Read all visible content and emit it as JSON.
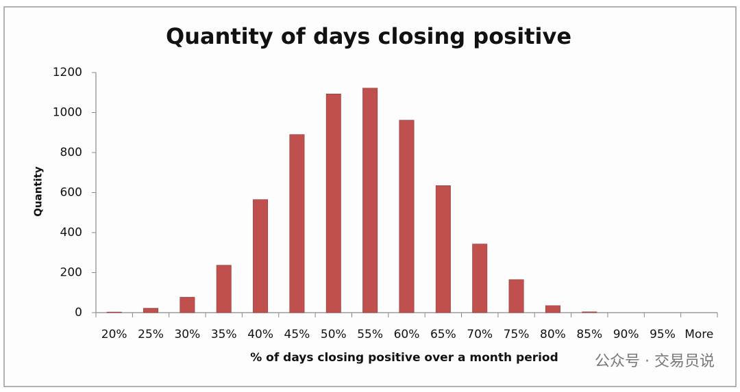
{
  "chart_data": {
    "type": "bar",
    "title": "Quantity of days closing positive",
    "x_label": "% of days closing positive over a month period",
    "y_label": "Quantity",
    "categories": [
      "20%",
      "25%",
      "30%",
      "35%",
      "40%",
      "45%",
      "50%",
      "55%",
      "60%",
      "65%",
      "70%",
      "75%",
      "80%",
      "85%",
      "90%",
      "95%",
      "More"
    ],
    "values": [
      3,
      22,
      77,
      237,
      565,
      890,
      1093,
      1122,
      962,
      635,
      343,
      165,
      35,
      4,
      0,
      0,
      0
    ],
    "color": "#c0504d",
    "ylim": [
      0,
      1200
    ],
    "yticks": [
      0,
      200,
      400,
      600,
      800,
      1000,
      1200
    ],
    "grid": false,
    "watermark": "公众号 · 交易员说"
  }
}
